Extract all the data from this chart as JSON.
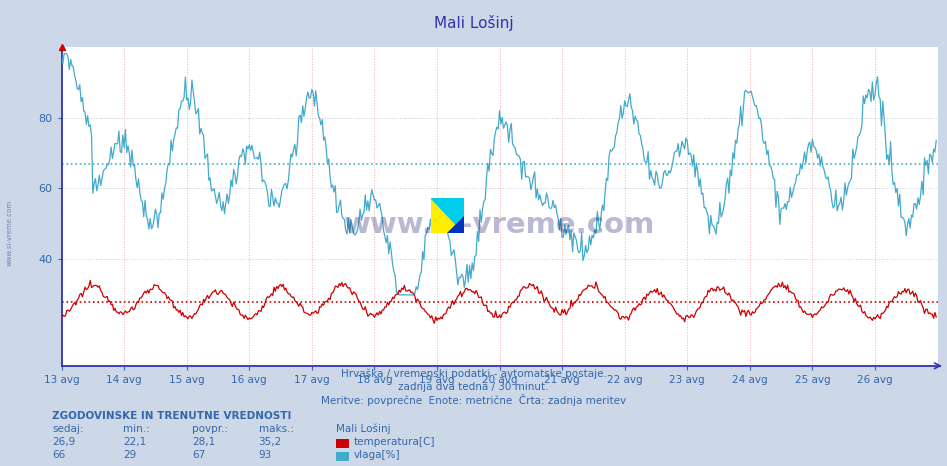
{
  "title": "Mali Lošinj",
  "outer_bg": "#ccd8e8",
  "plot_bg": "#ffffff",
  "line_color_temp": "#cc0000",
  "line_color_humid": "#44aacc",
  "avg_line_color_temp": "#cc0000",
  "avg_line_color_humid": "#44aacc",
  "axis_color": "#3333aa",
  "text_color": "#3366aa",
  "grid_color_h": "#bbccdd",
  "grid_color_v": "#ffaaaa",
  "ylim": [
    10,
    100
  ],
  "yticks": [
    40,
    60,
    80
  ],
  "date_labels": [
    "13 avg",
    "14 avg",
    "15 avg",
    "16 avg",
    "17 avg",
    "18 avg",
    "19 avg",
    "20 avg",
    "21 avg",
    "22 avg",
    "23 avg",
    "24 avg",
    "25 avg",
    "26 avg"
  ],
  "avg_temp": 28.1,
  "avg_humid": 67.0,
  "subtitle1": "Hrvaška / vremenski podatki - avtomatske postaje.",
  "subtitle2": "zadnja dva tedna / 30 minut.",
  "subtitle3": "Meritve: povprečne  Enote: metrične  Črta: zadnja meritev",
  "stats_header": "ZGODOVINSKE IN TRENUTNE VREDNOSTI",
  "stats_col1": "sedaj:",
  "stats_col2": "min.:",
  "stats_col3": "povpr.:",
  "stats_col4": "maks.:",
  "stats_name": "Mali Lošinj",
  "stats_temp_sedaj": "26,9",
  "stats_temp_min": "22,1",
  "stats_temp_povpr": "28,1",
  "stats_temp_maks": "35,2",
  "stats_humid_sedaj": "66",
  "stats_humid_min": "29",
  "stats_humid_povpr": "67",
  "stats_humid_maks": "93",
  "legend_temp": "temperatura[C]",
  "legend_humid": "vlaga[%]"
}
